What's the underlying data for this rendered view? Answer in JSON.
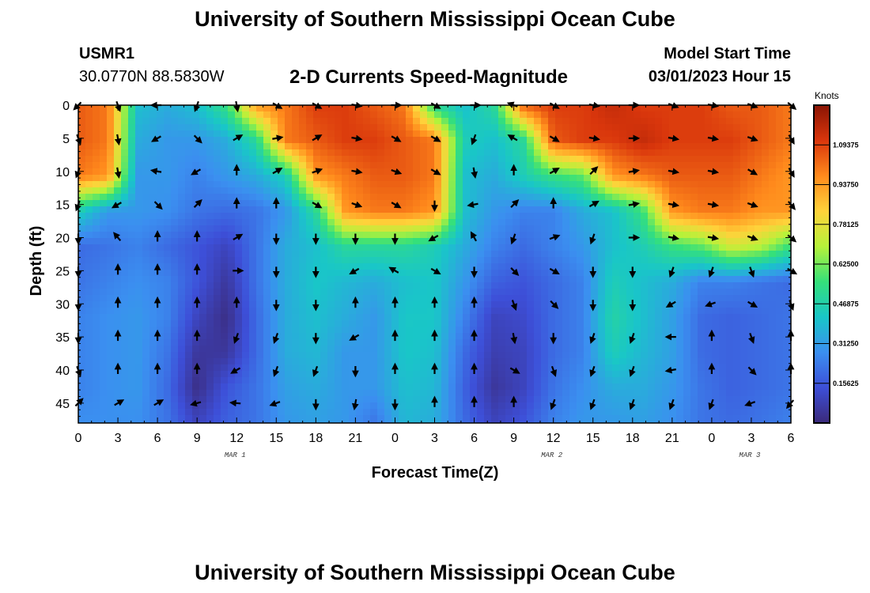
{
  "header": {
    "title": "University of Southern Mississippi Ocean Cube",
    "station": "USMR1",
    "coordinates": "30.0770N  88.5830W",
    "product": "2-D Currents Speed-Magnitude",
    "start_label": "Model Start Time",
    "start_value": "03/01/2023 Hour 15"
  },
  "footer": {
    "title": "University of Southern Mississippi Ocean Cube"
  },
  "colors": {
    "scale": [
      "#3b2a7a",
      "#3d4fd8",
      "#3b8ff0",
      "#19c6c8",
      "#35e07a",
      "#b6f23a",
      "#ffd23a",
      "#ff8a1c",
      "#d9360c",
      "#8a1404"
    ]
  },
  "chart_data": {
    "type": "heatmap",
    "xlabel": "Forecast Time(Z)",
    "ylabel": "Depth (ft)",
    "x_tick_labels": [
      "0",
      "3",
      "6",
      "9",
      "12",
      "15",
      "18",
      "21",
      "0",
      "3",
      "6",
      "9",
      "12",
      "15",
      "18",
      "21",
      "0",
      "3",
      "6"
    ],
    "date_labels": [
      "MAR 1",
      "MAR 2",
      "MAR 3"
    ],
    "y_ticks": [
      0,
      5,
      10,
      15,
      20,
      25,
      30,
      35,
      40,
      45
    ],
    "ylim": [
      0,
      48
    ],
    "colorbar": {
      "unit": "Knots",
      "ticks": [
        "0.15625",
        "0.31250",
        "0.46875",
        "0.62500",
        "0.78125",
        "0.93750",
        "1.09375"
      ],
      "range": [
        0,
        1.25
      ]
    },
    "depths": [
      0,
      5,
      10,
      15,
      20,
      25,
      30,
      35,
      40,
      45
    ],
    "speed_knots": [
      [
        1.05,
        1.0,
        0.4,
        0.35,
        0.4,
        0.55,
        0.95,
        1.0,
        1.1,
        1.1,
        1.05,
        1.0,
        0.5,
        0.4,
        0.5,
        1.05,
        1.1,
        1.1,
        1.15,
        1.1,
        1.1,
        1.1,
        1.05,
        1.05,
        1.0
      ],
      [
        1.05,
        1.0,
        0.35,
        0.3,
        0.3,
        0.35,
        0.5,
        1.0,
        1.05,
        1.1,
        1.1,
        1.05,
        1.0,
        0.45,
        0.4,
        0.5,
        1.05,
        1.1,
        1.1,
        1.15,
        1.1,
        1.1,
        1.1,
        1.05,
        1.0
      ],
      [
        1.0,
        0.95,
        0.3,
        0.3,
        0.25,
        0.3,
        0.35,
        0.45,
        0.95,
        1.0,
        1.05,
        1.05,
        1.0,
        0.4,
        0.35,
        0.45,
        0.55,
        0.6,
        0.95,
        1.0,
        1.05,
        1.05,
        1.05,
        1.0,
        0.95
      ],
      [
        0.45,
        0.3,
        0.3,
        0.28,
        0.22,
        0.2,
        0.22,
        0.3,
        0.5,
        0.95,
        1.0,
        1.0,
        0.95,
        0.4,
        0.3,
        0.25,
        0.25,
        0.35,
        0.4,
        0.55,
        0.95,
        1.0,
        1.0,
        0.95,
        0.95
      ],
      [
        0.2,
        0.22,
        0.25,
        0.2,
        0.15,
        0.1,
        0.22,
        0.35,
        0.4,
        0.5,
        0.5,
        0.5,
        0.45,
        0.35,
        0.25,
        0.2,
        0.25,
        0.3,
        0.4,
        0.45,
        0.55,
        0.6,
        0.75,
        0.7,
        0.55
      ],
      [
        0.22,
        0.25,
        0.28,
        0.25,
        0.15,
        0.05,
        0.22,
        0.35,
        0.42,
        0.38,
        0.35,
        0.4,
        0.42,
        0.3,
        0.18,
        0.15,
        0.2,
        0.25,
        0.45,
        0.4,
        0.35,
        0.25,
        0.25,
        0.22,
        0.2
      ],
      [
        0.25,
        0.28,
        0.3,
        0.25,
        0.1,
        0.02,
        0.2,
        0.35,
        0.4,
        0.35,
        0.3,
        0.42,
        0.42,
        0.25,
        0.1,
        0.12,
        0.2,
        0.25,
        0.48,
        0.4,
        0.32,
        0.2,
        0.18,
        0.2,
        0.22
      ],
      [
        0.25,
        0.28,
        0.3,
        0.22,
        0.05,
        0.05,
        0.2,
        0.35,
        0.38,
        0.3,
        0.3,
        0.42,
        0.4,
        0.2,
        0.08,
        0.1,
        0.2,
        0.25,
        0.45,
        0.38,
        0.32,
        0.2,
        0.18,
        0.2,
        0.22
      ],
      [
        0.25,
        0.28,
        0.3,
        0.2,
        0.02,
        0.15,
        0.22,
        0.32,
        0.35,
        0.3,
        0.3,
        0.4,
        0.38,
        0.18,
        0.05,
        0.1,
        0.22,
        0.28,
        0.35,
        0.35,
        0.3,
        0.22,
        0.18,
        0.2,
        0.22
      ],
      [
        0.28,
        0.28,
        0.28,
        0.22,
        0.1,
        0.18,
        0.22,
        0.3,
        0.32,
        0.3,
        0.22,
        0.38,
        0.35,
        0.2,
        0.1,
        0.15,
        0.25,
        0.3,
        0.3,
        0.32,
        0.28,
        0.22,
        0.2,
        0.22,
        0.25
      ]
    ],
    "arrow_times_hours": [
      0,
      3,
      6,
      9,
      12,
      15,
      18,
      21,
      24,
      27,
      30,
      33,
      36,
      39,
      42,
      45,
      48,
      51,
      54
    ],
    "arrow_depths": [
      0,
      5,
      10,
      15,
      20,
      25,
      30,
      35,
      40,
      45
    ],
    "arrow_direction_deg": [
      [
        225,
        160,
        270,
        200,
        170,
        120,
        120,
        100,
        90,
        120,
        90,
        290,
        120,
        100,
        90,
        110,
        100,
        110,
        130
      ],
      [
        160,
        170,
        240,
        135,
        60,
        80,
        60,
        100,
        120,
        120,
        200,
        300,
        120,
        100,
        90,
        100,
        100,
        110,
        150
      ],
      [
        200,
        170,
        280,
        240,
        0,
        60,
        70,
        100,
        110,
        120,
        170,
        0,
        60,
        45,
        80,
        100,
        100,
        120,
        150
      ],
      [
        200,
        240,
        135,
        45,
        0,
        0,
        120,
        110,
        120,
        180,
        260,
        45,
        0,
        60,
        80,
        100,
        100,
        110,
        140
      ],
      [
        180,
        320,
        0,
        0,
        60,
        180,
        180,
        180,
        180,
        240,
        330,
        200,
        70,
        200,
        90,
        100,
        100,
        110,
        130
      ],
      [
        180,
        0,
        0,
        0,
        90,
        180,
        180,
        240,
        300,
        120,
        180,
        135,
        120,
        180,
        180,
        200,
        200,
        160,
        120
      ],
      [
        180,
        0,
        0,
        0,
        0,
        180,
        180,
        0,
        0,
        0,
        0,
        160,
        135,
        180,
        180,
        240,
        250,
        120,
        160
      ],
      [
        180,
        0,
        0,
        0,
        200,
        200,
        180,
        240,
        0,
        0,
        0,
        170,
        180,
        200,
        200,
        270,
        0,
        160,
        0
      ],
      [
        160,
        0,
        0,
        0,
        240,
        200,
        200,
        180,
        0,
        0,
        0,
        120,
        160,
        200,
        200,
        260,
        0,
        135,
        0
      ],
      [
        45,
        60,
        60,
        255,
        275,
        250,
        180,
        190,
        180,
        0,
        0,
        0,
        200,
        200,
        200,
        200,
        200,
        250,
        220
      ]
    ]
  }
}
